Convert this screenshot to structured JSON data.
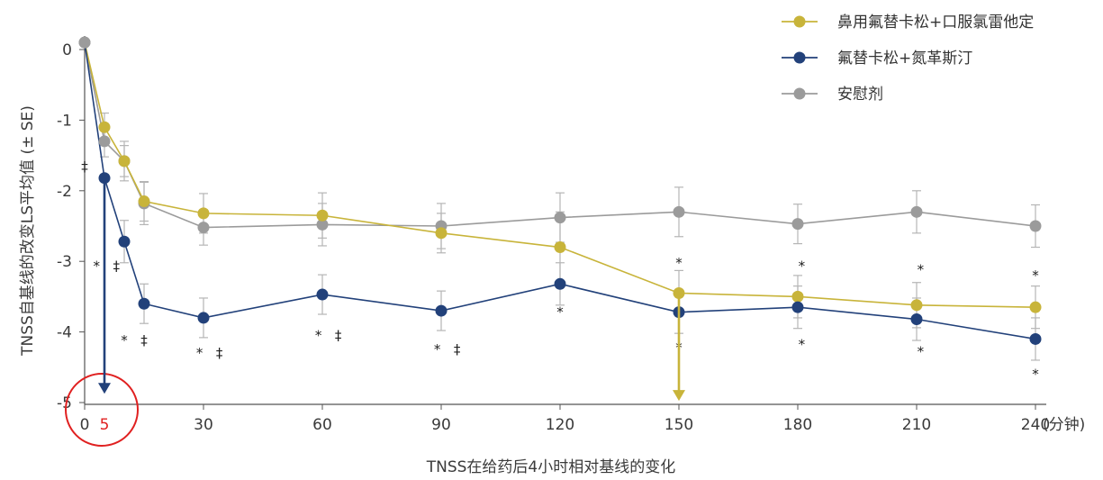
{
  "chart_data": {
    "type": "line",
    "xlabel": "TNSS在给药后4小时相对基线的变化",
    "ylabel": "TNSS自基线的改变LS平均值 (± SE)",
    "x_unit": "(分钟)",
    "x_ticks": [
      0,
      30,
      60,
      90,
      120,
      150,
      180,
      210,
      240
    ],
    "x_tick_labels": [
      "0",
      "30",
      "60",
      "90",
      "120",
      "150",
      "180",
      "210",
      "240"
    ],
    "highlight_tick": "5",
    "y_ticks": [
      0,
      -1,
      -2,
      -3,
      -4,
      -5
    ],
    "y_tick_labels": [
      "0",
      "-1",
      "-2",
      "-3",
      "-4",
      "-5"
    ],
    "xlim": [
      0,
      240
    ],
    "ylim": [
      -5,
      0.1
    ],
    "grid": false,
    "legend_position": "top-right",
    "series": [
      {
        "name": "鼻用氟替卡松+口服氯雷他定",
        "color": "#c8b43a",
        "x": [
          0,
          5,
          10,
          15,
          30,
          60,
          90,
          120,
          150,
          180,
          210,
          240
        ],
        "y": [
          0.1,
          -1.1,
          -1.58,
          -2.15,
          -2.32,
          -2.35,
          -2.6,
          -2.8,
          -3.45,
          -3.5,
          -3.62,
          -3.65
        ],
        "err": [
          0,
          0.2,
          0.22,
          0.28,
          0.28,
          0.32,
          0.28,
          0.5,
          0.32,
          0.3,
          0.32,
          0.3
        ]
      },
      {
        "name": "氟替卡松+氮革斯汀",
        "color": "#22417a",
        "x": [
          0,
          5,
          10,
          15,
          30,
          60,
          90,
          120,
          150,
          180,
          210,
          240
        ],
        "y": [
          0.1,
          -1.82,
          -2.72,
          -3.6,
          -3.8,
          -3.47,
          -3.7,
          -3.32,
          -3.72,
          -3.65,
          -3.82,
          -4.1
        ],
        "err": [
          0,
          0,
          0.3,
          0.28,
          0.28,
          0.28,
          0.28,
          0.3,
          0.3,
          0.3,
          0.3,
          0.3
        ]
      },
      {
        "name": "安慰剂",
        "color": "#9b9b9b",
        "x": [
          0,
          5,
          10,
          15,
          30,
          60,
          90,
          120,
          150,
          180,
          210,
          240
        ],
        "y": [
          0.1,
          -1.3,
          -1.58,
          -2.18,
          -2.52,
          -2.48,
          -2.5,
          -2.38,
          -2.3,
          -2.47,
          -2.3,
          -2.5
        ],
        "err": [
          0,
          0.22,
          0.28,
          0.3,
          0.25,
          0.3,
          0.32,
          0.35,
          0.35,
          0.28,
          0.3,
          0.3
        ]
      }
    ],
    "annotations": [
      {
        "text": "‡",
        "x": 0,
        "y": -1.66
      },
      {
        "text": "*",
        "x": 3,
        "y": -3.07
      },
      {
        "text": "‡",
        "x": 8,
        "y": -3.07
      },
      {
        "text": "*",
        "x": 10,
        "y": -4.12
      },
      {
        "text": "‡",
        "x": 15,
        "y": -4.12
      },
      {
        "text": "*",
        "x": 29,
        "y": -4.3
      },
      {
        "text": "‡",
        "x": 34,
        "y": -4.3
      },
      {
        "text": "*",
        "x": 59,
        "y": -4.05
      },
      {
        "text": "‡",
        "x": 64,
        "y": -4.05
      },
      {
        "text": "*",
        "x": 89,
        "y": -4.25
      },
      {
        "text": "‡",
        "x": 94,
        "y": -4.25
      },
      {
        "text": "*",
        "x": 120,
        "y": -3.72
      },
      {
        "text": "*",
        "x": 150,
        "y": -3.02
      },
      {
        "text": "*",
        "x": 150,
        "y": -4.22
      },
      {
        "text": "*",
        "x": 181,
        "y": -3.07
      },
      {
        "text": "*",
        "x": 181,
        "y": -4.18
      },
      {
        "text": "*",
        "x": 211,
        "y": -3.12
      },
      {
        "text": "*",
        "x": 211,
        "y": -4.28
      },
      {
        "text": "*",
        "x": 240,
        "y": -3.2
      },
      {
        "text": "*",
        "x": 240,
        "y": -4.6
      }
    ],
    "arrows": [
      {
        "color": "#22417a",
        "x": 5,
        "y_from": -1.82,
        "y_to": -4.85
      },
      {
        "color": "#c8b43a",
        "x": 150,
        "y_from": -3.45,
        "y_to": -4.95
      }
    ]
  }
}
